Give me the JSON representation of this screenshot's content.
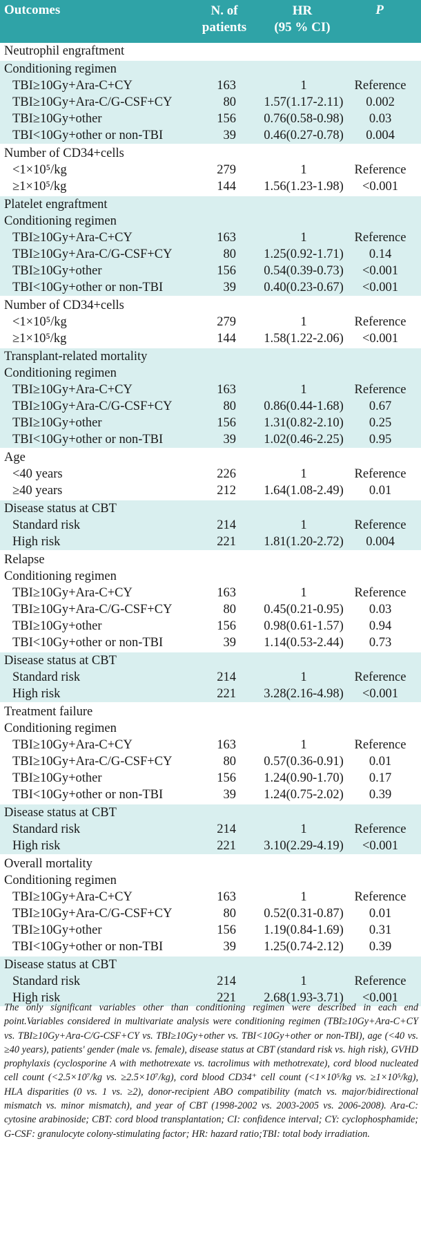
{
  "header": {
    "outcomes": "Outcomes",
    "n_line1": "N. of",
    "n_line2": "patients",
    "hr_line1": "HR",
    "hr_line2": "(95 % CI)",
    "p": "P"
  },
  "sections": [
    {
      "bg": "white",
      "rows": [
        {
          "label": "Neutrophil engraftment",
          "type": "title"
        }
      ]
    },
    {
      "bg": "teal",
      "rows": [
        {
          "label": "Conditioning regimen",
          "type": "sub"
        },
        {
          "label": "TBI≥10Gy+Ara-C+CY",
          "n": "163",
          "hr": "1",
          "p": "Reference",
          "type": "item"
        },
        {
          "label": "TBI≥10Gy+Ara-C/G-CSF+CY",
          "n": "80",
          "hr": "1.57(1.17-2.11)",
          "p": "0.002",
          "type": "item"
        },
        {
          "label": "TBI≥10Gy+other",
          "n": "156",
          "hr": "0.76(0.58-0.98)",
          "p": "0.03",
          "type": "item"
        },
        {
          "label": "TBI<10Gy+other or non-TBI",
          "n": "39",
          "hr": "0.46(0.27-0.78)",
          "p": "0.004",
          "type": "item"
        }
      ]
    },
    {
      "bg": "white",
      "rows": [
        {
          "label": "Number of CD34+cells",
          "type": "sub"
        },
        {
          "label": "<1×10⁵/kg",
          "n": "279",
          "hr": "1",
          "p": "Reference",
          "type": "item"
        },
        {
          "label": "≥1×10⁵/kg",
          "n": "144",
          "hr": "1.56(1.23-1.98)",
          "p": "<0.001",
          "type": "item"
        }
      ]
    },
    {
      "bg": "teal",
      "rows": [
        {
          "label": "Platelet engraftment",
          "type": "title"
        },
        {
          "label": "Conditioning regimen",
          "type": "sub"
        },
        {
          "label": "TBI≥10Gy+Ara-C+CY",
          "n": "163",
          "hr": "1",
          "p": "Reference",
          "type": "item"
        },
        {
          "label": "TBI≥10Gy+Ara-C/G-CSF+CY",
          "n": "80",
          "hr": "1.25(0.92-1.71)",
          "p": "0.14",
          "type": "item"
        },
        {
          "label": "TBI≥10Gy+other",
          "n": "156",
          "hr": "0.54(0.39-0.73)",
          "p": "<0.001",
          "type": "item"
        },
        {
          "label": "TBI<10Gy+other or non-TBI",
          "n": "39",
          "hr": "0.40(0.23-0.67)",
          "p": "<0.001",
          "type": "item"
        }
      ]
    },
    {
      "bg": "white",
      "rows": [
        {
          "label": "Number of CD34+cells",
          "type": "sub"
        },
        {
          "label": "<1×10⁵/kg",
          "n": "279",
          "hr": "1",
          "p": "Reference",
          "type": "item"
        },
        {
          "label": "≥1×10⁵/kg",
          "n": "144",
          "hr": "1.58(1.22-2.06)",
          "p": "<0.001",
          "type": "item"
        }
      ]
    },
    {
      "bg": "teal",
      "rows": [
        {
          "label": "Transplant-related mortality",
          "type": "title"
        },
        {
          "label": "Conditioning regimen",
          "type": "sub"
        },
        {
          "label": "TBI≥10Gy+Ara-C+CY",
          "n": "163",
          "hr": "1",
          "p": "Reference",
          "type": "item"
        },
        {
          "label": "TBI≥10Gy+Ara-C/G-CSF+CY",
          "n": "80",
          "hr": "0.86(0.44-1.68)",
          "p": "0.67",
          "type": "item"
        },
        {
          "label": "TBI≥10Gy+other",
          "n": "156",
          "hr": "1.31(0.82-2.10)",
          "p": "0.25",
          "type": "item"
        },
        {
          "label": "TBI<10Gy+other or non-TBI",
          "n": "39",
          "hr": "1.02(0.46-2.25)",
          "p": "0.95",
          "type": "item"
        }
      ]
    },
    {
      "bg": "white",
      "rows": [
        {
          "label": "Age",
          "type": "sub"
        },
        {
          "label": "<40 years",
          "n": "226",
          "hr": "1",
          "p": "Reference",
          "type": "item"
        },
        {
          "label": "≥40 years",
          "n": "212",
          "hr": "1.64(1.08-2.49)",
          "p": "0.01",
          "type": "item"
        }
      ]
    },
    {
      "bg": "teal",
      "rows": [
        {
          "label": "Disease status at CBT",
          "type": "sub"
        },
        {
          "label": "Standard risk",
          "n": "214",
          "hr": "1",
          "p": "Reference",
          "type": "item"
        },
        {
          "label": "High risk",
          "n": "221",
          "hr": "1.81(1.20-2.72)",
          "p": "0.004",
          "type": "item"
        }
      ]
    },
    {
      "bg": "white",
      "rows": [
        {
          "label": "Relapse",
          "type": "title"
        },
        {
          "label": "Conditioning regimen",
          "type": "sub"
        },
        {
          "label": "TBI≥10Gy+Ara-C+CY",
          "n": "163",
          "hr": "1",
          "p": "Reference",
          "type": "item"
        },
        {
          "label": "TBI≥10Gy+Ara-C/G-CSF+CY",
          "n": "80",
          "hr": "0.45(0.21-0.95)",
          "p": "0.03",
          "type": "item"
        },
        {
          "label": "TBI≥10Gy+other",
          "n": "156",
          "hr": "0.98(0.61-1.57)",
          "p": "0.94",
          "type": "item"
        },
        {
          "label": "TBI<10Gy+other or non-TBI",
          "n": "39",
          "hr": "1.14(0.53-2.44)",
          "p": "0.73",
          "type": "item"
        }
      ]
    },
    {
      "bg": "teal",
      "rows": [
        {
          "label": "Disease status at CBT",
          "type": "sub"
        },
        {
          "label": "Standard risk",
          "n": "214",
          "hr": "1",
          "p": "Reference",
          "type": "item"
        },
        {
          "label": "High risk",
          "n": "221",
          "hr": "3.28(2.16-4.98)",
          "p": "<0.001",
          "type": "item"
        }
      ]
    },
    {
      "bg": "white",
      "rows": [
        {
          "label": "Treatment failure",
          "type": "title"
        },
        {
          "label": "Conditioning regimen",
          "type": "sub"
        },
        {
          "label": "TBI≥10Gy+Ara-C+CY",
          "n": "163",
          "hr": "1",
          "p": "Reference",
          "type": "item"
        },
        {
          "label": "TBI≥10Gy+Ara-C/G-CSF+CY",
          "n": "80",
          "hr": "0.57(0.36-0.91)",
          "p": "0.01",
          "type": "item"
        },
        {
          "label": "TBI≥10Gy+other",
          "n": "156",
          "hr": "1.24(0.90-1.70)",
          "p": "0.17",
          "type": "item"
        },
        {
          "label": "TBI<10Gy+other or non-TBI",
          "n": "39",
          "hr": "1.24(0.75-2.02)",
          "p": "0.39",
          "type": "item"
        }
      ]
    },
    {
      "bg": "teal",
      "rows": [
        {
          "label": "Disease status at CBT",
          "type": "sub"
        },
        {
          "label": "Standard risk",
          "n": "214",
          "hr": "1",
          "p": "Reference",
          "type": "item"
        },
        {
          "label": "High risk",
          "n": "221",
          "hr": "3.10(2.29-4.19)",
          "p": "<0.001",
          "type": "item"
        }
      ]
    },
    {
      "bg": "white",
      "rows": [
        {
          "label": "Overall mortality",
          "type": "title"
        },
        {
          "label": "Conditioning regimen",
          "type": "sub"
        },
        {
          "label": "TBI≥10Gy+Ara-C+CY",
          "n": "163",
          "hr": "1",
          "p": "Reference",
          "type": "item"
        },
        {
          "label": "TBI≥10Gy+Ara-C/G-CSF+CY",
          "n": "80",
          "hr": "0.52(0.31-0.87)",
          "p": "0.01",
          "type": "item"
        },
        {
          "label": "TBI≥10Gy+other",
          "n": "156",
          "hr": "1.19(0.84-1.69)",
          "p": "0.31",
          "type": "item"
        },
        {
          "label": "TBI<10Gy+other or non-TBI",
          "n": "39",
          "hr": "1.25(0.74-2.12)",
          "p": "0.39",
          "type": "item"
        }
      ]
    },
    {
      "bg": "teal",
      "rows": [
        {
          "label": "Disease status at CBT",
          "type": "sub"
        },
        {
          "label": "Standard risk",
          "n": "214",
          "hr": "1",
          "p": "Reference",
          "type": "item"
        },
        {
          "label": "High risk",
          "n": "221",
          "hr": "2.68(1.93-3.71)",
          "p": "<0.001",
          "type": "item"
        }
      ]
    }
  ],
  "footnote": "The only significant variables other than conditioning regimen were described in each end point.Variables considered in multivariate analysis were conditioning regimen (TBI≥10Gy+Ara-C+CY vs. TBI≥10Gy+Ara-C/G-CSF+CY vs. TBI≥10Gy+other vs. TBI<10Gy+other or non-TBI), age (<40 vs. ≥40 years), patients' gender (male vs. female), disease status at CBT (standard risk vs. high risk), GVHD prophylaxis (cyclosporine A with methotrexate vs. tacrolimus with methotrexate), cord blood nucleated cell count (<2.5×10⁷/kg vs. ≥2.5×10⁷/kg), cord blood CD34⁺ cell count (<1×10⁵/kg vs. ≥1×10⁵/kg), HLA disparities (0 vs. 1 vs. ≥2), donor-recipient ABO compatibility (match vs. major/bidirectional mismatch vs. minor mismatch), and year of CBT (1998-2002 vs. 2003-2005 vs. 2006-2008). Ara-C: cytosine arabinoside; CBT: cord blood transplantation; CI: confidence interval; CY: cyclophosphamide; G-CSF: granulocyte colony-stimulating factor; HR: hazard ratio;TBI: total body irradiation."
}
